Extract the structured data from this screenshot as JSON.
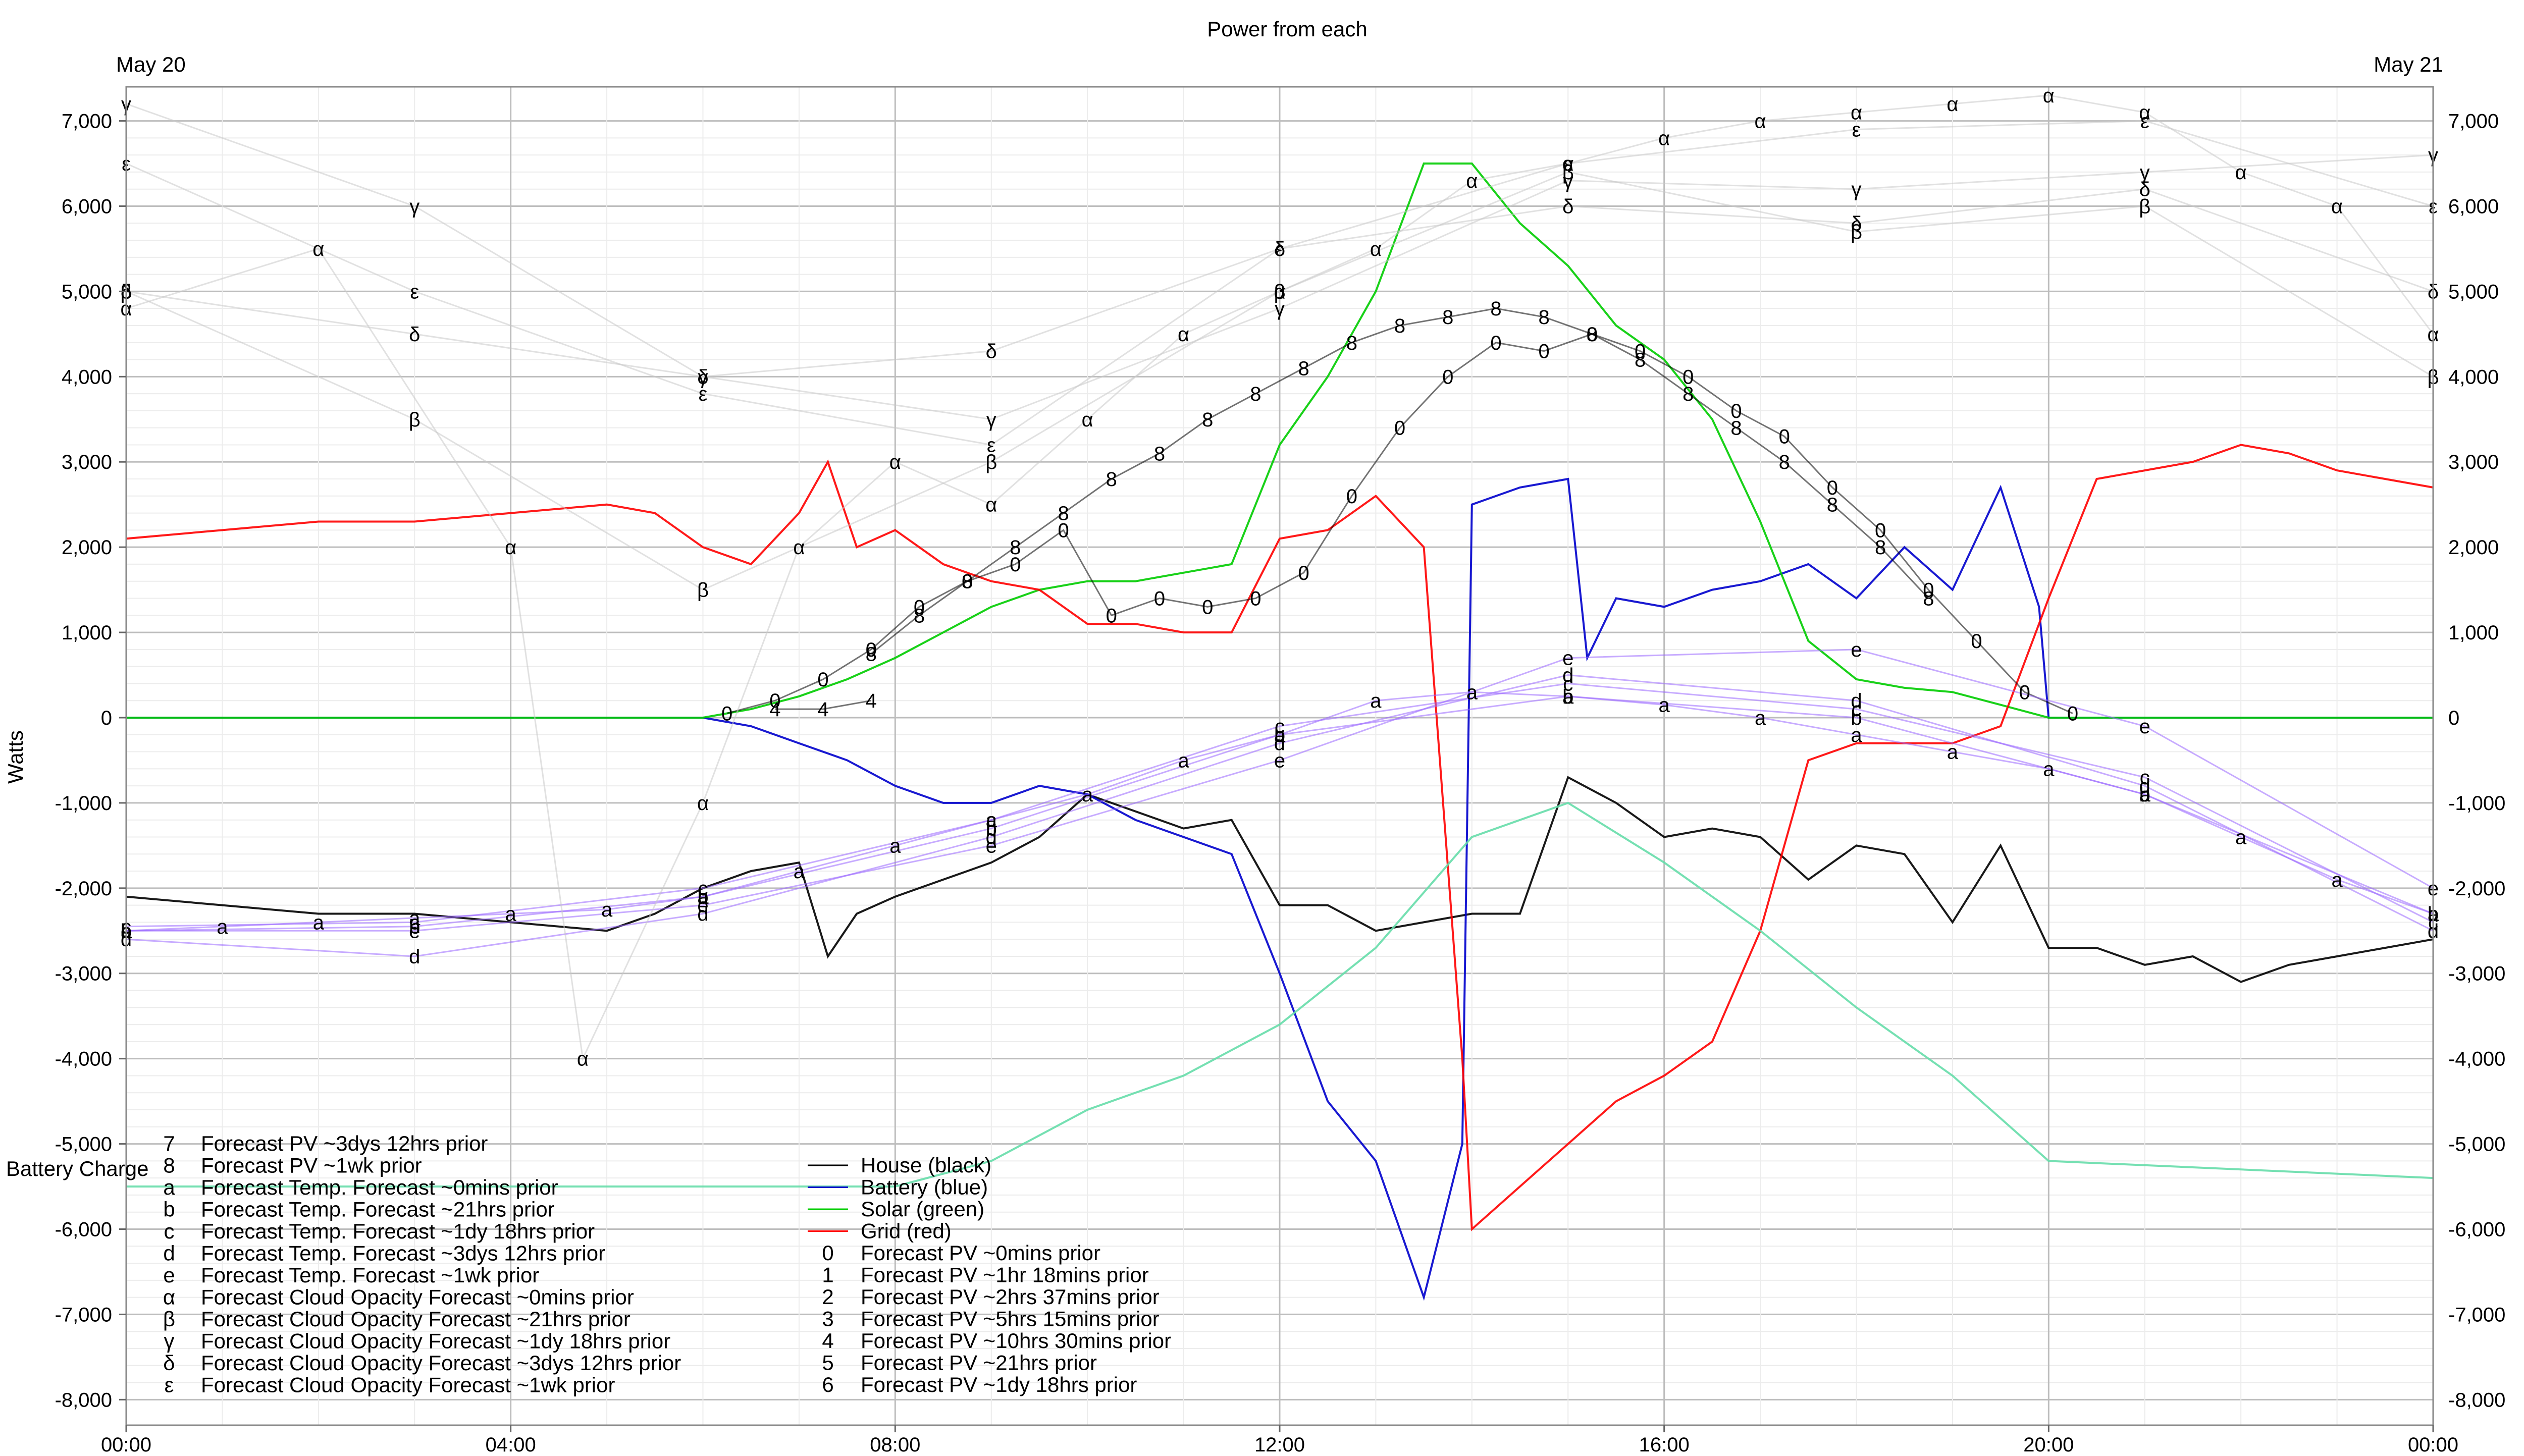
{
  "chart_data": {
    "type": "line",
    "title": "Power from each",
    "ylabel": "Watts",
    "date_left": "May 20",
    "date_right": "May 21",
    "extra_label": "Battery Charge",
    "xlim": [
      0,
      24
    ],
    "ylim": [
      -8300,
      7400
    ],
    "grid": true,
    "x_ticks": [
      {
        "t": 0,
        "label": "00:00"
      },
      {
        "t": 4,
        "label": "04:00"
      },
      {
        "t": 8,
        "label": "08:00"
      },
      {
        "t": 12,
        "label": "12:00"
      },
      {
        "t": 16,
        "label": "16:00"
      },
      {
        "t": 20,
        "label": "20:00"
      },
      {
        "t": 24,
        "label": "00:00"
      }
    ],
    "y_ticks": [
      {
        "v": 7000,
        "label": "7,000"
      },
      {
        "v": 6000,
        "label": "6,000"
      },
      {
        "v": 5000,
        "label": "5,000"
      },
      {
        "v": 4000,
        "label": "4,000"
      },
      {
        "v": 3000,
        "label": "3,000"
      },
      {
        "v": 2000,
        "label": "2,000"
      },
      {
        "v": 1000,
        "label": "1,000"
      },
      {
        "v": 0,
        "label": "0"
      },
      {
        "v": -1000,
        "label": "-1,000"
      },
      {
        "v": -2000,
        "label": "-2,000"
      },
      {
        "v": -3000,
        "label": "-3,000"
      },
      {
        "v": -4000,
        "label": "-4,000"
      },
      {
        "v": -5000,
        "label": "-5,000"
      },
      {
        "v": -6000,
        "label": "-6,000"
      },
      {
        "v": -7000,
        "label": "-7,000"
      },
      {
        "v": -8000,
        "label": "-8,000"
      }
    ],
    "series": [
      {
        "name": "House (black)",
        "color": "#000000",
        "x": [
          0,
          1,
          2,
          3,
          4,
          5,
          5.5,
          6,
          6.5,
          7,
          7.3,
          7.6,
          8,
          8.5,
          9,
          9.5,
          10,
          10.5,
          11,
          11.5,
          12,
          12.5,
          13,
          13.5,
          14,
          14.5,
          15,
          15.5,
          16,
          16.5,
          17,
          17.5,
          18,
          18.5,
          19,
          19.5,
          20,
          20.5,
          21,
          21.5,
          22,
          22.5,
          23,
          23.5,
          24
        ],
        "y": [
          -2100,
          -2200,
          -2300,
          -2300,
          -2400,
          -2500,
          -2300,
          -2000,
          -1800,
          -1700,
          -2800,
          -2300,
          -2100,
          -1900,
          -1700,
          -1400,
          -900,
          -1100,
          -1300,
          -1200,
          -2200,
          -2200,
          -2500,
          -2400,
          -2300,
          -2300,
          -700,
          -1000,
          -1400,
          -1300,
          -1400,
          -1900,
          -1500,
          -1600,
          -2400,
          -1500,
          -2700,
          -2700,
          -2900,
          -2800,
          -3100,
          -2900,
          -2800,
          -2700,
          -2600
        ]
      },
      {
        "name": "Battery (blue)",
        "color": "#0000cc",
        "x": [
          0,
          6,
          6.5,
          7,
          7.5,
          8,
          8.5,
          9,
          9.5,
          10,
          10.5,
          11,
          11.5,
          12,
          12.5,
          13,
          13.5,
          13.9,
          14,
          14.5,
          15,
          15.2,
          15.5,
          16,
          16.5,
          17,
          17.5,
          18,
          18.5,
          19,
          19.5,
          19.9,
          20,
          24
        ],
        "y": [
          0,
          0,
          -100,
          -300,
          -500,
          -800,
          -1000,
          -1000,
          -800,
          -900,
          -1200,
          -1400,
          -1600,
          -3000,
          -4500,
          -5200,
          -6800,
          -5000,
          2500,
          2700,
          2800,
          700,
          1400,
          1300,
          1500,
          1600,
          1800,
          1400,
          2000,
          1500,
          2700,
          1300,
          0,
          0
        ]
      },
      {
        "name": "Solar (green)",
        "color": "#00cc00",
        "x": [
          0,
          6,
          6.5,
          7,
          7.5,
          8,
          8.5,
          9,
          9.5,
          10,
          10.5,
          11,
          11.5,
          12,
          12.5,
          13,
          13.5,
          14,
          14.5,
          15,
          15.5,
          16,
          16.5,
          17,
          17.5,
          18,
          18.5,
          19,
          19.5,
          20,
          24
        ],
        "y": [
          0,
          0,
          100,
          250,
          450,
          700,
          1000,
          1300,
          1500,
          1600,
          1600,
          1700,
          1800,
          3200,
          4000,
          5000,
          6500,
          6500,
          5800,
          5300,
          4600,
          4200,
          3500,
          2300,
          900,
          450,
          350,
          300,
          150,
          0,
          0
        ]
      },
      {
        "name": "Grid (red)",
        "color": "#ff0000",
        "x": [
          0,
          1,
          2,
          3,
          4,
          5,
          5.5,
          6,
          6.5,
          7,
          7.3,
          7.6,
          8,
          8.5,
          9,
          9.5,
          10,
          10.5,
          11,
          11.5,
          12,
          12.5,
          13,
          13.5,
          13.9,
          14,
          14.5,
          15,
          15.5,
          16,
          16.5,
          17,
          17.5,
          18,
          18.5,
          19,
          19.5,
          20,
          20.5,
          21,
          21.5,
          22,
          22.5,
          23,
          23.5,
          24
        ],
        "y": [
          2100,
          2200,
          2300,
          2300,
          2400,
          2500,
          2400,
          2000,
          1800,
          2400,
          3000,
          2000,
          2200,
          1800,
          1600,
          1500,
          1100,
          1100,
          1000,
          1000,
          2100,
          2200,
          2600,
          2000,
          -4000,
          -6000,
          -5500,
          -5000,
          -4500,
          -4200,
          -3800,
          -2500,
          -500,
          -300,
          -300,
          -300,
          -100,
          1400,
          2800,
          2900,
          3000,
          3200,
          3100,
          2900,
          2800,
          2700
        ]
      },
      {
        "name": "Forecast PV ~0mins prior",
        "color": "#000000",
        "marker": "0",
        "x": [
          6.25,
          6.75,
          7.25,
          7.75,
          8.25,
          8.75,
          9.25,
          9.75,
          10.25,
          10.75,
          11.25,
          11.75,
          12.25,
          12.75,
          13.25,
          13.75,
          14.25,
          14.75,
          15.25,
          15.75,
          16.25,
          16.75,
          17.25,
          17.75,
          18.25,
          18.75,
          19.25,
          19.75,
          20.25
        ],
        "y": [
          50,
          200,
          450,
          800,
          1300,
          1600,
          1800,
          2200,
          1200,
          1400,
          1300,
          1400,
          1700,
          2600,
          3400,
          4000,
          4400,
          4300,
          4500,
          4300,
          4000,
          3600,
          3300,
          2700,
          2200,
          1500,
          900,
          300,
          50
        ]
      },
      {
        "name": "Forecast PV ~1hr 18mins prior",
        "color": "#000000",
        "marker": "1",
        "x": [],
        "y": []
      },
      {
        "name": "Forecast PV ~2hrs 37mins prior",
        "color": "#000000",
        "marker": "2",
        "x": [],
        "y": []
      },
      {
        "name": "Forecast PV ~5hrs 15mins prior",
        "color": "#000000",
        "marker": "3",
        "x": [],
        "y": []
      },
      {
        "name": "Forecast PV ~10hrs 30mins prior",
        "color": "#000000",
        "marker": "4",
        "x": [
          6.75,
          7.25,
          7.75
        ],
        "y": [
          100,
          100,
          200
        ]
      },
      {
        "name": "Forecast PV ~21hrs prior",
        "color": "#000000",
        "marker": "5",
        "x": [],
        "y": []
      },
      {
        "name": "Forecast PV ~1dy 18hrs prior",
        "color": "#000000",
        "marker": "6",
        "x": [],
        "y": []
      },
      {
        "name": "Forecast PV ~3dys 12hrs prior",
        "color": "#000000",
        "marker": "7",
        "x": [],
        "y": []
      },
      {
        "name": "Forecast PV ~1wk prior",
        "color": "#000000",
        "marker": "8",
        "x": [
          7.75,
          8.25,
          8.75,
          9.25,
          9.75,
          10.25,
          10.75,
          11.25,
          11.75,
          12.25,
          12.75,
          13.25,
          13.75,
          14.25,
          14.75,
          15.25,
          15.75,
          16.25,
          16.75,
          17.25,
          17.75,
          18.25,
          18.75
        ],
        "y": [
          750,
          1200,
          1600,
          2000,
          2400,
          2800,
          3100,
          3500,
          3800,
          4100,
          4400,
          4600,
          4700,
          4800,
          4700,
          4500,
          4200,
          3800,
          3400,
          3000,
          2500,
          2000,
          1400
        ]
      },
      {
        "name": "Forecast Temp. Forecast ~0mins prior",
        "color": "#9966ff",
        "marker": "a",
        "x": [
          0,
          1,
          2,
          3,
          4,
          5,
          6,
          7,
          8,
          9,
          10,
          11,
          12,
          13,
          14,
          15,
          16,
          17,
          18,
          19,
          20,
          21,
          22,
          23,
          24
        ],
        "y": [
          -2500,
          -2450,
          -2400,
          -2350,
          -2300,
          -2250,
          -2100,
          -1800,
          -1500,
          -1200,
          -900,
          -500,
          -200,
          200,
          300,
          250,
          150,
          0,
          -200,
          -400,
          -600,
          -900,
          -1400,
          -1900,
          -2300
        ]
      },
      {
        "name": "Forecast Temp. Forecast ~21hrs prior",
        "color": "#9966ff",
        "marker": "b",
        "x": [
          0,
          3,
          6,
          9,
          12,
          15,
          18,
          21,
          24
        ],
        "y": [
          -2500,
          -2450,
          -2100,
          -1300,
          -200,
          250,
          0,
          -900,
          -2300
        ]
      },
      {
        "name": "Forecast Temp. Forecast ~1dy 18hrs prior",
        "color": "#9966ff",
        "marker": "c",
        "x": [
          0,
          3,
          6,
          9,
          12,
          15,
          18,
          21,
          24
        ],
        "y": [
          -2450,
          -2400,
          -2000,
          -1200,
          -100,
          400,
          100,
          -700,
          -2400
        ]
      },
      {
        "name": "Forecast Temp. Forecast ~3dys 12hrs prior",
        "color": "#9966ff",
        "marker": "d",
        "x": [
          0,
          3,
          6,
          9,
          12,
          15,
          18,
          21,
          24
        ],
        "y": [
          -2600,
          -2800,
          -2300,
          -1400,
          -300,
          500,
          200,
          -800,
          -2500
        ]
      },
      {
        "name": "Forecast Temp. Forecast ~1wk prior",
        "color": "#9966ff",
        "marker": "e",
        "x": [
          0,
          3,
          6,
          9,
          12,
          15,
          18,
          21,
          24
        ],
        "y": [
          -2500,
          -2500,
          -2200,
          -1500,
          -500,
          700,
          800,
          -100,
          -2000
        ]
      },
      {
        "name": "Forecast Cloud Opacity Forecast ~0mins prior",
        "color": "#c8c8c8",
        "marker": "α",
        "x": [
          0,
          2,
          4,
          4.75,
          6,
          7,
          8,
          9,
          10,
          11,
          12,
          13,
          14,
          15,
          16,
          17,
          18,
          19,
          20,
          21,
          22,
          23,
          24
        ],
        "y": [
          4800,
          5500,
          2000,
          -4000,
          -1000,
          2000,
          3000,
          2500,
          3500,
          4500,
          5000,
          5500,
          6300,
          6500,
          6800,
          7000,
          7100,
          7200,
          7300,
          7100,
          6400,
          6000,
          4500
        ]
      },
      {
        "name": "Forecast Cloud Opacity Forecast ~21hrs prior",
        "color": "#c8c8c8",
        "marker": "β",
        "x": [
          0,
          3,
          6,
          9,
          12,
          15,
          18,
          21,
          24
        ],
        "y": [
          5000,
          3500,
          1500,
          3000,
          5000,
          6400,
          5700,
          6000,
          4000
        ]
      },
      {
        "name": "Forecast Cloud Opacity Forecast ~1dy 18hrs prior",
        "color": "#c8c8c8",
        "marker": "γ",
        "x": [
          0,
          3,
          6,
          9,
          12,
          15,
          18,
          21,
          24
        ],
        "y": [
          7200,
          6000,
          4000,
          3500,
          4800,
          6300,
          6200,
          6400,
          6600
        ]
      },
      {
        "name": "Forecast Cloud Opacity Forecast ~3dys 12hrs prior",
        "color": "#c8c8c8",
        "marker": "δ",
        "x": [
          0,
          3,
          6,
          9,
          12,
          15,
          18,
          21,
          24
        ],
        "y": [
          5000,
          4500,
          4000,
          4300,
          5500,
          6000,
          5800,
          6200,
          5000
        ]
      },
      {
        "name": "Forecast Cloud Opacity Forecast ~1wk prior",
        "color": "#c8c8c8",
        "marker": "ε",
        "x": [
          0,
          3,
          6,
          9,
          12,
          15,
          18,
          21,
          24
        ],
        "y": [
          6500,
          5000,
          3800,
          3200,
          5500,
          6500,
          6900,
          7000,
          6000
        ]
      },
      {
        "name": "Battery Charge",
        "color": "#66ddaa",
        "x": [
          0,
          4,
          8,
          9,
          10,
          11,
          12,
          13,
          14,
          15,
          16,
          17,
          18,
          19,
          20,
          24
        ],
        "y": [
          -5500,
          -5500,
          -5500,
          -5200,
          -4600,
          -4200,
          -3600,
          -2700,
          -1400,
          -1000,
          -1700,
          -2500,
          -3400,
          -4200,
          -5200,
          -5400
        ]
      }
    ],
    "legend": {
      "col1": [
        {
          "marker": "7",
          "label": "Forecast PV ~3dys 12hrs prior"
        },
        {
          "marker": "8",
          "label": "Forecast PV ~1wk prior"
        },
        {
          "marker": "a",
          "label": "Forecast Temp. Forecast ~0mins prior"
        },
        {
          "marker": "b",
          "label": "Forecast Temp. Forecast ~21hrs prior"
        },
        {
          "marker": "c",
          "label": "Forecast Temp. Forecast ~1dy 18hrs prior"
        },
        {
          "marker": "d",
          "label": "Forecast Temp. Forecast ~3dys 12hrs prior"
        },
        {
          "marker": "e",
          "label": "Forecast Temp. Forecast ~1wk prior"
        },
        {
          "marker": "α",
          "label": "Forecast Cloud Opacity Forecast ~0mins prior"
        },
        {
          "marker": "β",
          "label": "Forecast Cloud Opacity Forecast ~21hrs prior"
        },
        {
          "marker": "γ",
          "label": "Forecast Cloud Opacity Forecast ~1dy 18hrs prior"
        },
        {
          "marker": "δ",
          "label": "Forecast Cloud Opacity Forecast ~3dys 12hrs prior"
        },
        {
          "marker": "ε",
          "label": "Forecast Cloud Opacity Forecast ~1wk prior"
        }
      ],
      "col2": [
        {
          "marker": "",
          "label": "House (black)",
          "color": "#000000"
        },
        {
          "marker": "",
          "label": "Battery (blue)",
          "color": "#0000cc"
        },
        {
          "marker": "",
          "label": "Solar (green)",
          "color": "#00cc00"
        },
        {
          "marker": "",
          "label": "Grid (red)",
          "color": "#ff0000"
        },
        {
          "marker": "0",
          "label": "Forecast PV ~0mins prior"
        },
        {
          "marker": "1",
          "label": "Forecast PV ~1hr 18mins prior"
        },
        {
          "marker": "2",
          "label": "Forecast PV ~2hrs 37mins prior"
        },
        {
          "marker": "3",
          "label": "Forecast PV ~5hrs 15mins prior"
        },
        {
          "marker": "4",
          "label": "Forecast PV ~10hrs 30mins prior"
        },
        {
          "marker": "5",
          "label": "Forecast PV ~21hrs prior"
        },
        {
          "marker": "6",
          "label": "Forecast PV ~1dy 18hrs prior"
        }
      ]
    }
  }
}
